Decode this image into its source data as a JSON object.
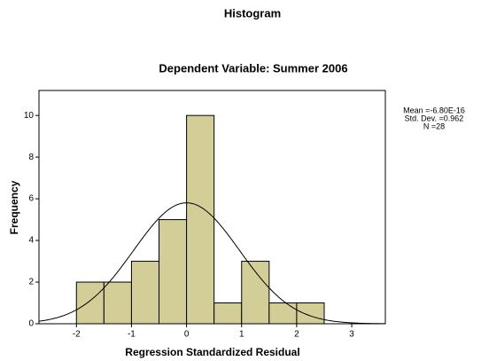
{
  "chart_data": {
    "type": "histogram",
    "title": "Histogram",
    "subtitle": "Dependent Variable: Summer 2006",
    "x_label": "Regression Standardized Residual",
    "y_label": "Frequency",
    "bins": [
      -2,
      -1.5,
      -1,
      -0.5,
      0,
      0.5,
      1,
      1.5,
      2,
      2.5
    ],
    "counts": [
      2,
      2,
      3,
      5,
      10,
      1,
      3,
      1,
      1
    ],
    "color": "#d3ce98",
    "xlim": [
      -2.68,
      3.61
    ],
    "xticks": [
      -2,
      -1,
      0,
      1,
      2,
      3
    ],
    "ylim": [
      0,
      11.2
    ],
    "yticks": [
      0,
      2,
      4,
      6,
      8,
      10
    ],
    "stats": [
      {
        "value": -6.8e-16,
        "label": "Mean =-6.80E-16"
      },
      {
        "value": 0.962,
        "label": "Std. Dev. =0.962"
      },
      {
        "value": 28,
        "label": "N =28"
      }
    ],
    "normal_curve": true
  }
}
